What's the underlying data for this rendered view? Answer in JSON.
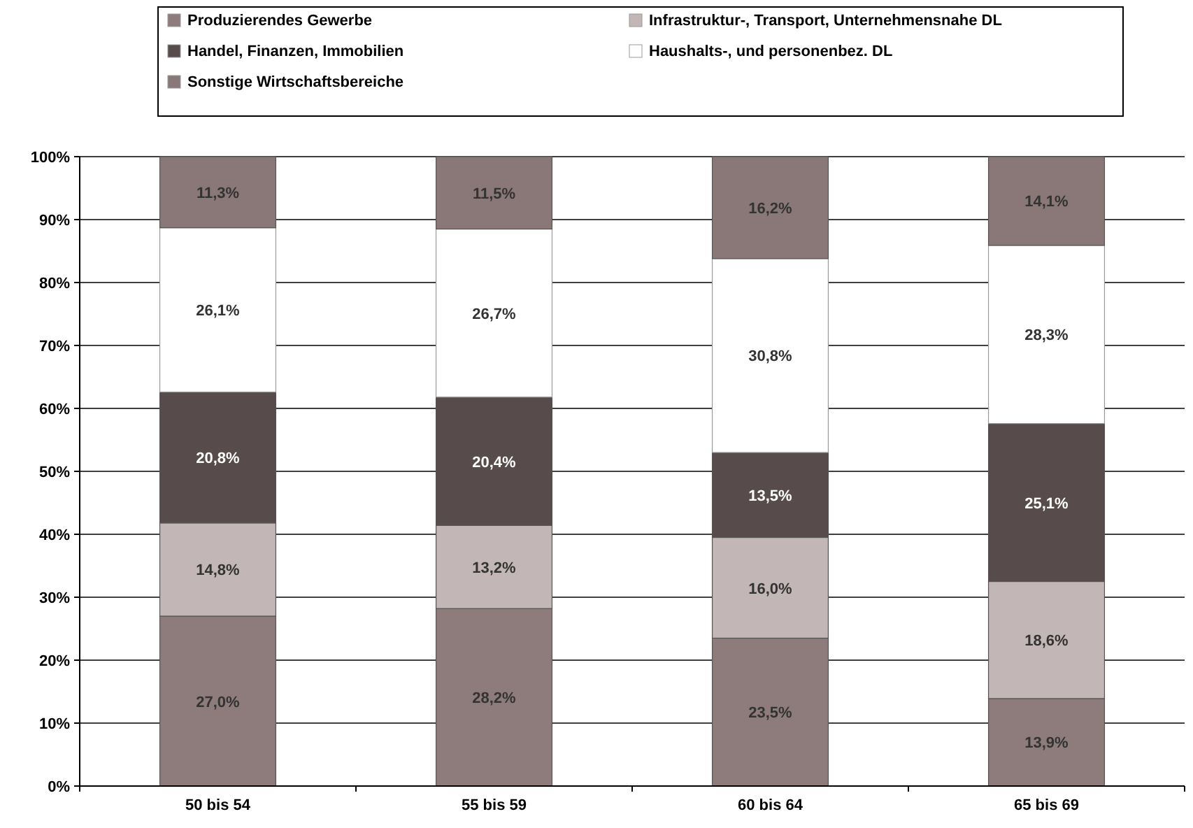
{
  "chart_data": {
    "type": "bar",
    "stacked": true,
    "categories": [
      "50 bis 54",
      "55 bis 59",
      "60 bis 64",
      "65 bis 69"
    ],
    "series": [
      {
        "name": "Produzierendes Gewerbe",
        "color": "#8e7c7c",
        "values": [
          27.0,
          28.2,
          23.5,
          13.9
        ],
        "value_labels": [
          "27,0%",
          "28,2%",
          "23,5%",
          "13,9%"
        ]
      },
      {
        "name": "Infrastruktur-, Transport, Unternehmensnahe DL",
        "color": "#c2b6b6",
        "values": [
          14.8,
          13.2,
          16.0,
          18.6
        ],
        "value_labels": [
          "14,8%",
          "13,2%",
          "16,0%",
          "18,6%"
        ]
      },
      {
        "name": "Handel, Finanzen, Immobilien",
        "color": "#574b4b",
        "values": [
          20.8,
          20.4,
          13.5,
          25.1
        ],
        "value_labels": [
          "20,8%",
          "20,4%",
          "13,5%",
          "25,1%"
        ]
      },
      {
        "name": "Haushalts-, und personenbez. DL",
        "color": "#ffffff",
        "values": [
          26.1,
          26.7,
          30.8,
          28.3
        ],
        "value_labels": [
          "26,1%",
          "26,7%",
          "30,8%",
          "28,3%"
        ]
      },
      {
        "name": "Sonstige Wirtschaftsbereiche",
        "color": "#8a7878",
        "values": [
          11.3,
          11.5,
          16.2,
          14.1
        ],
        "value_labels": [
          "11,3%",
          "11,5%",
          "16,2%",
          "14,1%"
        ]
      }
    ],
    "ylim": [
      0,
      100
    ],
    "yticks": [
      {
        "value": 0,
        "label": "0%"
      },
      {
        "value": 10,
        "label": "10%"
      },
      {
        "value": 20,
        "label": "20%"
      },
      {
        "value": 30,
        "label": "30%"
      },
      {
        "value": 40,
        "label": "40%"
      },
      {
        "value": 50,
        "label": "50%"
      },
      {
        "value": 60,
        "label": "60%"
      },
      {
        "value": 70,
        "label": "70%"
      },
      {
        "value": 80,
        "label": "80%"
      },
      {
        "value": 90,
        "label": "90%"
      },
      {
        "value": 100,
        "label": "100%"
      }
    ],
    "grid": "y",
    "legend": "top"
  }
}
